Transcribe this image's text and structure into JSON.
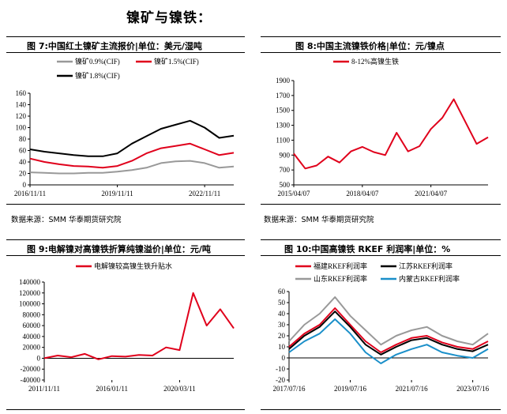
{
  "heading": "镍矿与镍铁：",
  "panels": [
    {
      "title": "图 7:中国红土镍矿主流报价|单位：美元/湿吨",
      "source": "数据来源：SMM  华泰期货研究院"
    },
    {
      "title": "图 8:中国主流镍铁价格|单位：元/镍点",
      "source": "数据来源：SMM  华泰期货研究院"
    },
    {
      "title": "图 9:电解镍对高镍铁折算纯镍溢价|单位：元/吨",
      "source": ""
    },
    {
      "title": "图 10:中国高镍铁 RKEF 利润率|单位：%",
      "source": ""
    }
  ],
  "chart_data": [
    {
      "type": "line",
      "x": [
        "2016/11/11",
        "2017/05/11",
        "2017/11/11",
        "2018/05/11",
        "2018/11/11",
        "2019/05/11",
        "2019/11/11",
        "2020/05/11",
        "2020/11/11",
        "2021/05/11",
        "2021/11/11",
        "2022/05/11",
        "2022/11/11",
        "2023/03/11",
        "2023/08/11"
      ],
      "xticks": [
        "2016/11/11",
        "2019/11/11",
        "2022/11/11"
      ],
      "ylim": [
        0,
        160
      ],
      "yticks": [
        0,
        20,
        40,
        60,
        80,
        100,
        120,
        140,
        160
      ],
      "legend": "top",
      "series": [
        {
          "name": "镍矿0.9%(CIF)",
          "color": "#999999",
          "values": [
            22,
            21,
            20,
            20,
            21,
            21,
            23,
            26,
            30,
            38,
            41,
            42,
            38,
            30,
            32
          ]
        },
        {
          "name": "镍矿1.5%(CIF)",
          "color": "#e0001b",
          "values": [
            46,
            40,
            36,
            33,
            32,
            30,
            33,
            42,
            55,
            64,
            68,
            72,
            62,
            52,
            56
          ]
        },
        {
          "name": "镍矿1.8%(CIF)",
          "color": "#000000",
          "values": [
            62,
            58,
            55,
            52,
            50,
            50,
            55,
            72,
            85,
            98,
            105,
            112,
            100,
            82,
            86
          ]
        }
      ]
    },
    {
      "type": "line",
      "x": [
        "2015/04/07",
        "2015/10/07",
        "2016/04/07",
        "2016/10/07",
        "2017/04/07",
        "2017/10/07",
        "2018/04/07",
        "2018/10/07",
        "2019/04/07",
        "2019/10/07",
        "2020/04/07",
        "2020/10/07",
        "2021/04/07",
        "2021/10/07",
        "2022/04/07",
        "2022/10/07",
        "2023/04/07",
        "2023/08/07"
      ],
      "xticks": [
        "2015/04/07",
        "2018/04/07",
        "2021/04/07"
      ],
      "ylim": [
        500,
        1900
      ],
      "yticks": [
        500,
        700,
        900,
        1100,
        1300,
        1500,
        1700,
        1900
      ],
      "legend": "top",
      "series": [
        {
          "name": "8-12%高镍生铁",
          "color": "#e0001b",
          "values": [
            920,
            720,
            760,
            880,
            800,
            950,
            1010,
            940,
            900,
            1200,
            950,
            1020,
            1250,
            1400,
            1650,
            1350,
            1050,
            1140
          ]
        }
      ]
    },
    {
      "type": "line",
      "x": [
        "2011/11/11",
        "2012/11/11",
        "2013/11/11",
        "2014/11/11",
        "2015/11/11",
        "2016/11/11",
        "2017/11/11",
        "2018/11/11",
        "2019/11/11",
        "2020/11/11",
        "2021/11/11",
        "2022/03/11",
        "2022/11/11",
        "2023/05/11",
        "2023/09/11"
      ],
      "xticks": [
        "2011/11/11",
        "2016/01/11",
        "2020/03/11"
      ],
      "ylim": [
        -40000,
        140000
      ],
      "yticks": [
        -40000,
        -20000,
        0,
        20000,
        40000,
        60000,
        80000,
        100000,
        120000,
        140000
      ],
      "legend": "top",
      "series": [
        {
          "name": "电解镍较高镍生铁升贴水",
          "color": "#e0001b",
          "values": [
            0,
            5000,
            2000,
            8000,
            -2000,
            4000,
            3000,
            6000,
            5000,
            20000,
            15000,
            120000,
            60000,
            90000,
            55000
          ]
        }
      ]
    },
    {
      "type": "line",
      "x": [
        "2017/07/16",
        "2018/01/16",
        "2018/07/16",
        "2019/01/16",
        "2019/07/16",
        "2020/01/16",
        "2020/07/16",
        "2021/01/16",
        "2021/07/16",
        "2022/01/16",
        "2022/07/16",
        "2023/01/16",
        "2023/07/16",
        "2023/09/16"
      ],
      "xticks": [
        "2017/07/16",
        "2019/07/16",
        "2021/07/16",
        "2023/07/16"
      ],
      "ylim": [
        -20,
        60
      ],
      "yticks": [
        -20,
        -10,
        0,
        10,
        20,
        30,
        40,
        50,
        60
      ],
      "legend": "top",
      "series": [
        {
          "name": "福建RKEF利润率",
          "color": "#e0001b",
          "values": [
            10,
            22,
            30,
            45,
            30,
            15,
            5,
            12,
            18,
            20,
            14,
            10,
            8,
            15
          ]
        },
        {
          "name": "江苏RKEF利润率",
          "color": "#000000",
          "values": [
            8,
            20,
            28,
            42,
            28,
            12,
            3,
            10,
            16,
            18,
            12,
            8,
            6,
            12
          ]
        },
        {
          "name": "山东RKEF利润率",
          "color": "#999999",
          "values": [
            15,
            30,
            40,
            55,
            38,
            25,
            12,
            20,
            25,
            28,
            20,
            15,
            12,
            22
          ]
        },
        {
          "name": "内蒙古RKEF利润率",
          "color": "#1a8fc9",
          "values": [
            5,
            15,
            22,
            35,
            22,
            5,
            -5,
            3,
            8,
            12,
            5,
            2,
            0,
            8
          ]
        }
      ]
    }
  ]
}
